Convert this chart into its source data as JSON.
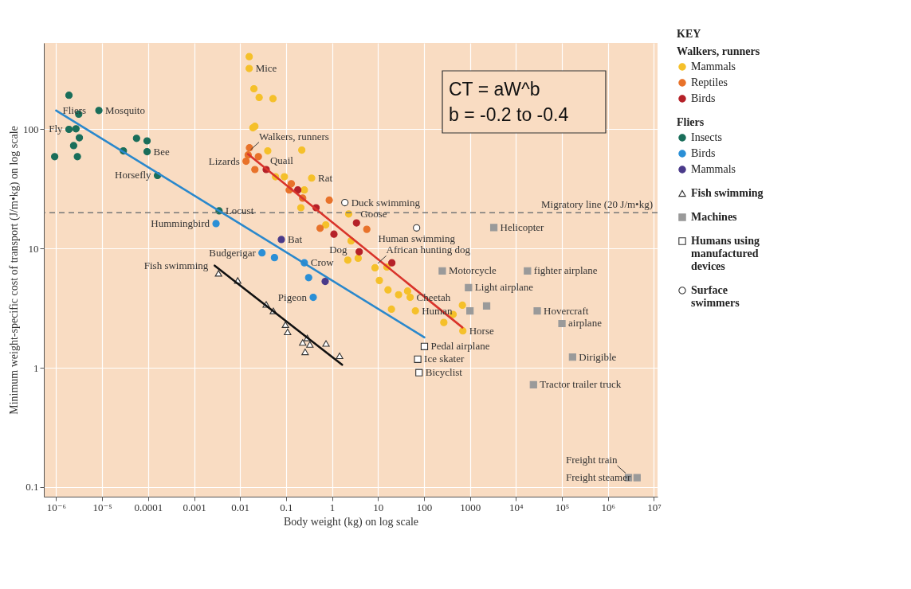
{
  "chart_data": {
    "type": "scatter",
    "xlabel": "Body weight (kg) on log scale",
    "ylabel": "Minimum weight-specific cost of transport (J/m•kg) on log scale",
    "legend_title": "KEY",
    "legend": "right",
    "log": "xy",
    "grid": true,
    "xlim": [
      5.4e-07,
      12000000.0
    ],
    "ylim": [
      0.083,
      530
    ],
    "xticks": [
      {
        "value": 1e-06,
        "label": "10⁻⁶"
      },
      {
        "value": 1e-05,
        "label": "10⁻⁵"
      },
      0.0001,
      0.001,
      0.01,
      0.1,
      1,
      10,
      100,
      1000,
      {
        "value": 10000,
        "label": "10⁴"
      },
      {
        "value": 100000,
        "label": "10⁵"
      },
      {
        "value": 1000000,
        "label": "10⁶"
      },
      {
        "value": 10000000,
        "label": "10⁷"
      }
    ],
    "yticks": [
      0.1,
      1,
      10,
      100
    ],
    "series": [
      {
        "type": "line",
        "name": "Walkers, runners",
        "color": "#d9342b",
        "x": [
          0.0148,
          684
        ],
        "values": [
          62,
          2.18
        ]
      },
      {
        "type": "scatter",
        "name": "Mammals",
        "color": "#f5c02a",
        "marker": "circle",
        "x": [
          0.0158,
          0.0158,
          0.02,
          0.026,
          0.052,
          0.019,
          0.021,
          0.04,
          0.22,
          0.059,
          0.092,
          0.36,
          0.25,
          0.21,
          0.73,
          2.3,
          2.6,
          2.2,
          3.7,
          8.6,
          15.6,
          10.7,
          16.5,
          28,
          44,
          50,
          19.6,
          65,
          270,
          430,
          684,
          700
        ],
        "values": [
          407,
          324,
          219,
          185,
          181,
          103,
          106,
          66,
          67,
          40,
          40,
          39,
          31,
          22,
          15.8,
          19.5,
          11.6,
          8.0,
          8.3,
          6.9,
          7.0,
          5.4,
          4.5,
          4.1,
          4.4,
          3.9,
          3.1,
          3.0,
          2.4,
          2.8,
          3.35,
          2.04
        ]
      },
      {
        "type": "scatter",
        "name": "Reptiles",
        "color": "#e8722a",
        "marker": "circle",
        "x": [
          0.016,
          0.015,
          0.025,
          0.0135,
          0.021,
          0.13,
          0.117,
          0.23,
          0.87,
          0.55,
          5.7
        ],
        "values": [
          70,
          61,
          59,
          54,
          46,
          35,
          31,
          26.5,
          25.5,
          14.8,
          14.5
        ]
      },
      {
        "type": "scatter",
        "name": "Birds",
        "color": "#b52128",
        "marker": "circle",
        "x": [
          0.037,
          0.18,
          0.45,
          1.1,
          3.4,
          3.9,
          20
        ],
        "values": [
          46,
          31,
          22,
          13.2,
          16.4,
          9.4,
          7.6
        ]
      },
      {
        "type": "line",
        "name": "Fliers",
        "color": "#2a88cc",
        "x": [
          1e-06,
          102
        ],
        "values": [
          144,
          1.8
        ]
      },
      {
        "type": "scatter",
        "name": "Insects",
        "color": "#1a6e5a",
        "marker": "circle",
        "x": [
          1.9e-06,
          3.1e-06,
          8.5e-06,
          1.9e-06,
          2.7e-06,
          3.2e-06,
          2.4e-06,
          9.3e-07,
          2.9e-06,
          5.6e-05,
          9.5e-05,
          9.5e-05,
          2.9e-05,
          0.00016,
          0.0035
        ],
        "values": [
          193,
          134,
          144,
          100,
          101,
          85,
          73,
          59,
          59,
          84,
          80,
          65,
          66,
          41,
          20.7
        ]
      },
      {
        "type": "scatter",
        "name": "Birds",
        "color": "#2a8fd6",
        "marker": "circle",
        "x": [
          0.003,
          0.03,
          0.056,
          0.25,
          0.31,
          0.39
        ],
        "values": [
          16.2,
          9.2,
          8.4,
          7.6,
          5.7,
          3.9
        ]
      },
      {
        "type": "scatter",
        "name": "Mammals",
        "color": "#4a3a8a",
        "marker": "circle",
        "x": [
          0.079,
          0.71
        ],
        "values": [
          11.9,
          5.3
        ]
      },
      {
        "type": "line",
        "color": "#111111",
        "x": [
          0.0028,
          1.66
        ],
        "values": [
          7.2,
          1.06
        ]
      },
      {
        "type": "scatter",
        "name": "Fish swimming",
        "color": "#ffffff",
        "marker": "triangle",
        "x": [
          0.0034,
          0.0089,
          0.037,
          0.053,
          0.097,
          0.108,
          0.29,
          0.23,
          0.33,
          0.26,
          0.74,
          1.46
        ],
        "values": [
          6.2,
          5.4,
          3.4,
          3.0,
          2.3,
          2.0,
          1.78,
          1.63,
          1.57,
          1.36,
          1.6,
          1.26
        ]
      },
      {
        "type": "scatter",
        "name": "Machines",
        "color": "#9a9a9a",
        "marker": "square",
        "x": [
          3300,
          250,
          17800,
          930,
          2300,
          1000,
          29000,
          100000,
          170000,
          24000,
          2800000,
          4300000
        ],
        "values": [
          15,
          6.5,
          6.5,
          4.7,
          3.3,
          3.0,
          3.0,
          2.35,
          1.23,
          0.72,
          0.12,
          0.12
        ]
      },
      {
        "type": "scatter",
        "name": "Humans using manufactured devices",
        "color": "#ffffff",
        "marker": "square",
        "x": [
          102,
          73,
          78
        ],
        "values": [
          1.51,
          1.18,
          0.91
        ]
      },
      {
        "type": "scatter",
        "name": "Surface swimmers",
        "color": "#ffffff",
        "marker": "circle",
        "x": [
          1.9,
          69
        ],
        "values": [
          24.3,
          14.9
        ]
      }
    ],
    "ref_lines": [
      {
        "axis": "y",
        "value": 20,
        "label": "Migratory line (20 J/m•kg)",
        "color": "#777777",
        "line_style": "dashed"
      }
    ],
    "annotations": [
      {
        "text": "Mosquito",
        "x": 8.5e-06,
        "y": 144
      },
      {
        "text": "Fly",
        "x": 1.9e-06,
        "y": 100
      },
      {
        "text": "Bee",
        "x": 9.5e-05,
        "y": 65
      },
      {
        "text": "Horsefly",
        "x": 0.00016,
        "y": 41
      },
      {
        "text": "Locust",
        "x": 0.0035,
        "y": 20.7
      },
      {
        "text": "Hummingbird",
        "x": 0.003,
        "y": 16.2
      },
      {
        "text": "Bat",
        "x": 0.079,
        "y": 11.9
      },
      {
        "text": "Budgerigar",
        "x": 0.03,
        "y": 9.2
      },
      {
        "text": "Crow",
        "x": 0.25,
        "y": 7.6
      },
      {
        "text": "Pigeon",
        "x": 0.39,
        "y": 3.9
      },
      {
        "text": "Mice",
        "x": 0.0158,
        "y": 324
      },
      {
        "text": "Lizards",
        "x": 0.0135,
        "y": 54
      },
      {
        "text": "Quail",
        "x": 0.037,
        "y": 46
      },
      {
        "text": "Rat",
        "x": 0.36,
        "y": 39
      },
      {
        "text": "Duck swimming",
        "x": 1.9,
        "y": 24.3
      },
      {
        "text": "Goose",
        "x": 3.4,
        "y": 16.4
      },
      {
        "text": "Dog",
        "x": 2.6,
        "y": 11.6
      },
      {
        "text": "African hunting dog",
        "x": 8.6,
        "y": 6.9
      },
      {
        "text": "Cheetah",
        "x": 50,
        "y": 3.9
      },
      {
        "text": "Human",
        "x": 65,
        "y": 3.0
      },
      {
        "text": "Horse",
        "x": 700,
        "y": 2.04
      },
      {
        "text": "Human swimming",
        "x": 69,
        "y": 14.9
      },
      {
        "text": "Helicopter",
        "x": 3300,
        "y": 15
      },
      {
        "text": "Motorcycle",
        "x": 250,
        "y": 6.5
      },
      {
        "text": "fighter airplane",
        "x": 17800,
        "y": 6.5
      },
      {
        "text": "Light airplane",
        "x": 930,
        "y": 4.7
      },
      {
        "text": "Hovercraft",
        "x": 29000,
        "y": 3.0
      },
      {
        "text": "airplane",
        "x": 100000,
        "y": 2.35
      },
      {
        "text": "Dirigible",
        "x": 170000,
        "y": 1.23
      },
      {
        "text": "Tractor trailer truck",
        "x": 24000,
        "y": 0.72
      },
      {
        "text": "Pedal airplane",
        "x": 102,
        "y": 1.51
      },
      {
        "text": "Ice skater",
        "x": 73,
        "y": 1.18
      },
      {
        "text": "Bicyclist",
        "x": 78,
        "y": 0.91
      },
      {
        "text": "Freight steamer",
        "x": 4300000,
        "y": 0.12
      },
      {
        "text": "Freight train",
        "x": 2800000,
        "y": 0.12
      },
      {
        "text": "Fish swimming",
        "x": 0.0028,
        "y": 7.2
      },
      "CT  = aW^b",
      "b = -0.2 to -0.4"
    ]
  }
}
